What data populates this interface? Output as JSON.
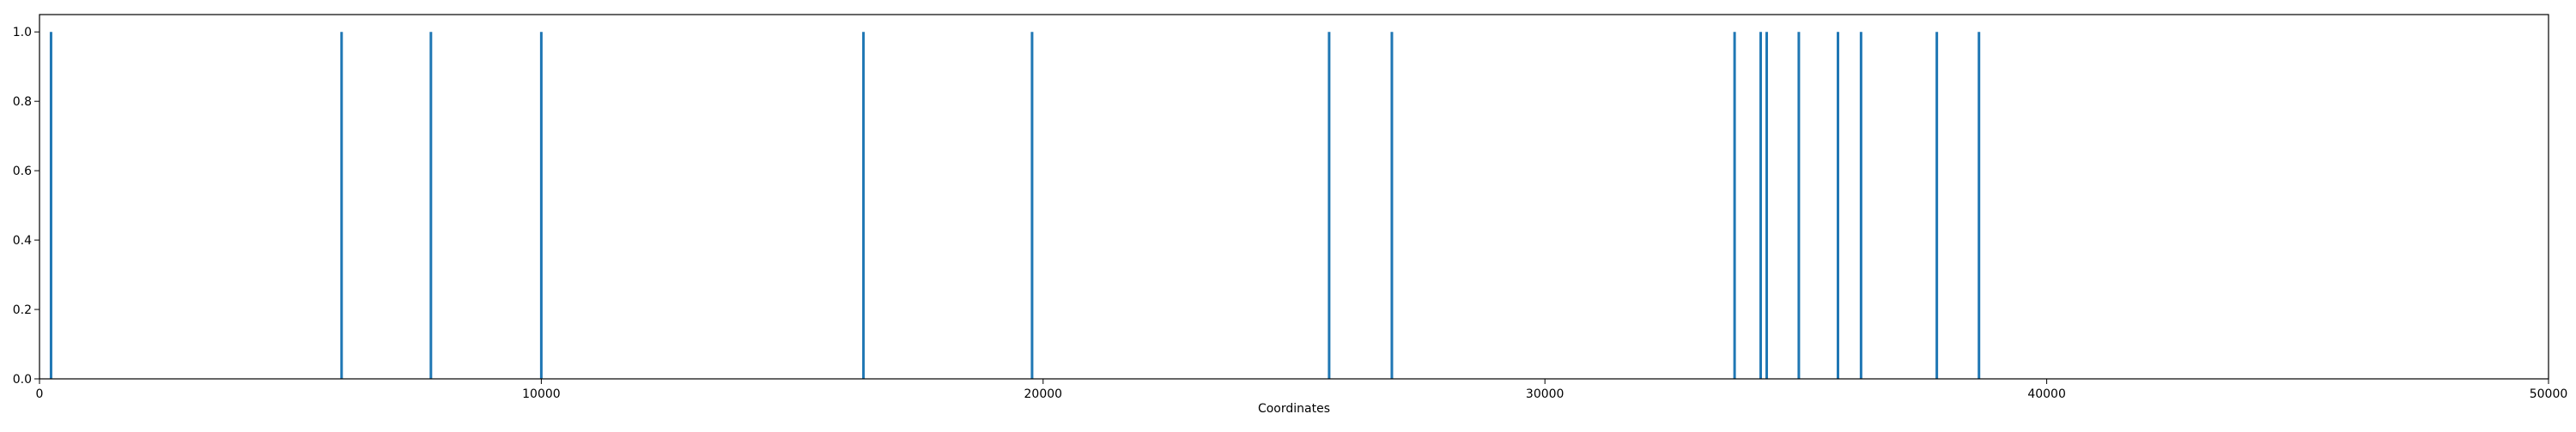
{
  "chart_data": {
    "type": "bar",
    "title": "",
    "xlabel": "Coordinates",
    "ylabel": "",
    "xlim": [
      0,
      50000
    ],
    "ylim": [
      0,
      1.05
    ],
    "grid": false,
    "x_ticks": [
      0,
      10000,
      20000,
      30000,
      40000,
      50000
    ],
    "y_ticks": [
      0.0,
      0.2,
      0.4,
      0.6,
      0.8,
      1.0
    ],
    "x_tick_labels": [
      "0",
      "10000",
      "20000",
      "30000",
      "40000",
      "50000"
    ],
    "y_tick_labels": [
      "0.0",
      "0.2",
      "0.4",
      "0.6",
      "0.8",
      "1.0"
    ],
    "series": [
      {
        "color": "#1f77b4",
        "points": [
          {
            "x": 230,
            "y": 1
          },
          {
            "x": 6020,
            "y": 1
          },
          {
            "x": 7800,
            "y": 1
          },
          {
            "x": 10000,
            "y": 1
          },
          {
            "x": 16420,
            "y": 1
          },
          {
            "x": 19780,
            "y": 1
          },
          {
            "x": 25700,
            "y": 1
          },
          {
            "x": 26950,
            "y": 1
          },
          {
            "x": 33780,
            "y": 1
          },
          {
            "x": 34300,
            "y": 1
          },
          {
            "x": 34420,
            "y": 1
          },
          {
            "x": 35060,
            "y": 1
          },
          {
            "x": 35840,
            "y": 1
          },
          {
            "x": 36300,
            "y": 1
          },
          {
            "x": 37810,
            "y": 1
          },
          {
            "x": 38650,
            "y": 1
          }
        ]
      }
    ]
  }
}
